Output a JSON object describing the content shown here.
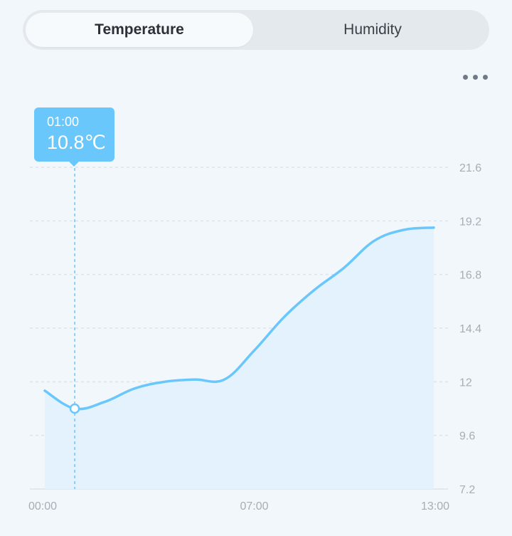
{
  "tabs": [
    {
      "label": "Temperature",
      "active": true
    },
    {
      "label": "Humidity",
      "active": false
    }
  ],
  "tooltip": {
    "time": "01:00",
    "value": "10.8℃"
  },
  "colors": {
    "accent": "#6ac7fb",
    "area": "#e3f2fd",
    "grid": "#dde3ea",
    "tick": "#a7adb4"
  },
  "chart_data": {
    "type": "area",
    "x": [
      0,
      1,
      2,
      3,
      4,
      5,
      6,
      7,
      8,
      9,
      10,
      11,
      12,
      13
    ],
    "y": [
      11.6,
      10.8,
      11.1,
      11.7,
      12.0,
      12.1,
      12.1,
      13.4,
      14.9,
      16.1,
      17.1,
      18.3,
      18.8,
      18.9
    ],
    "xticks": [
      {
        "x": 0,
        "label": "00:00"
      },
      {
        "x": 7,
        "label": "07:00"
      },
      {
        "x": 13,
        "label": "13:00"
      }
    ],
    "yticks": [
      "7.2",
      "9.6",
      "12",
      "14.4",
      "16.8",
      "19.2",
      "21.6"
    ],
    "ylim": [
      7.2,
      21.6
    ],
    "xlim": [
      0,
      13
    ],
    "highlight_index": 1,
    "grid": true
  }
}
